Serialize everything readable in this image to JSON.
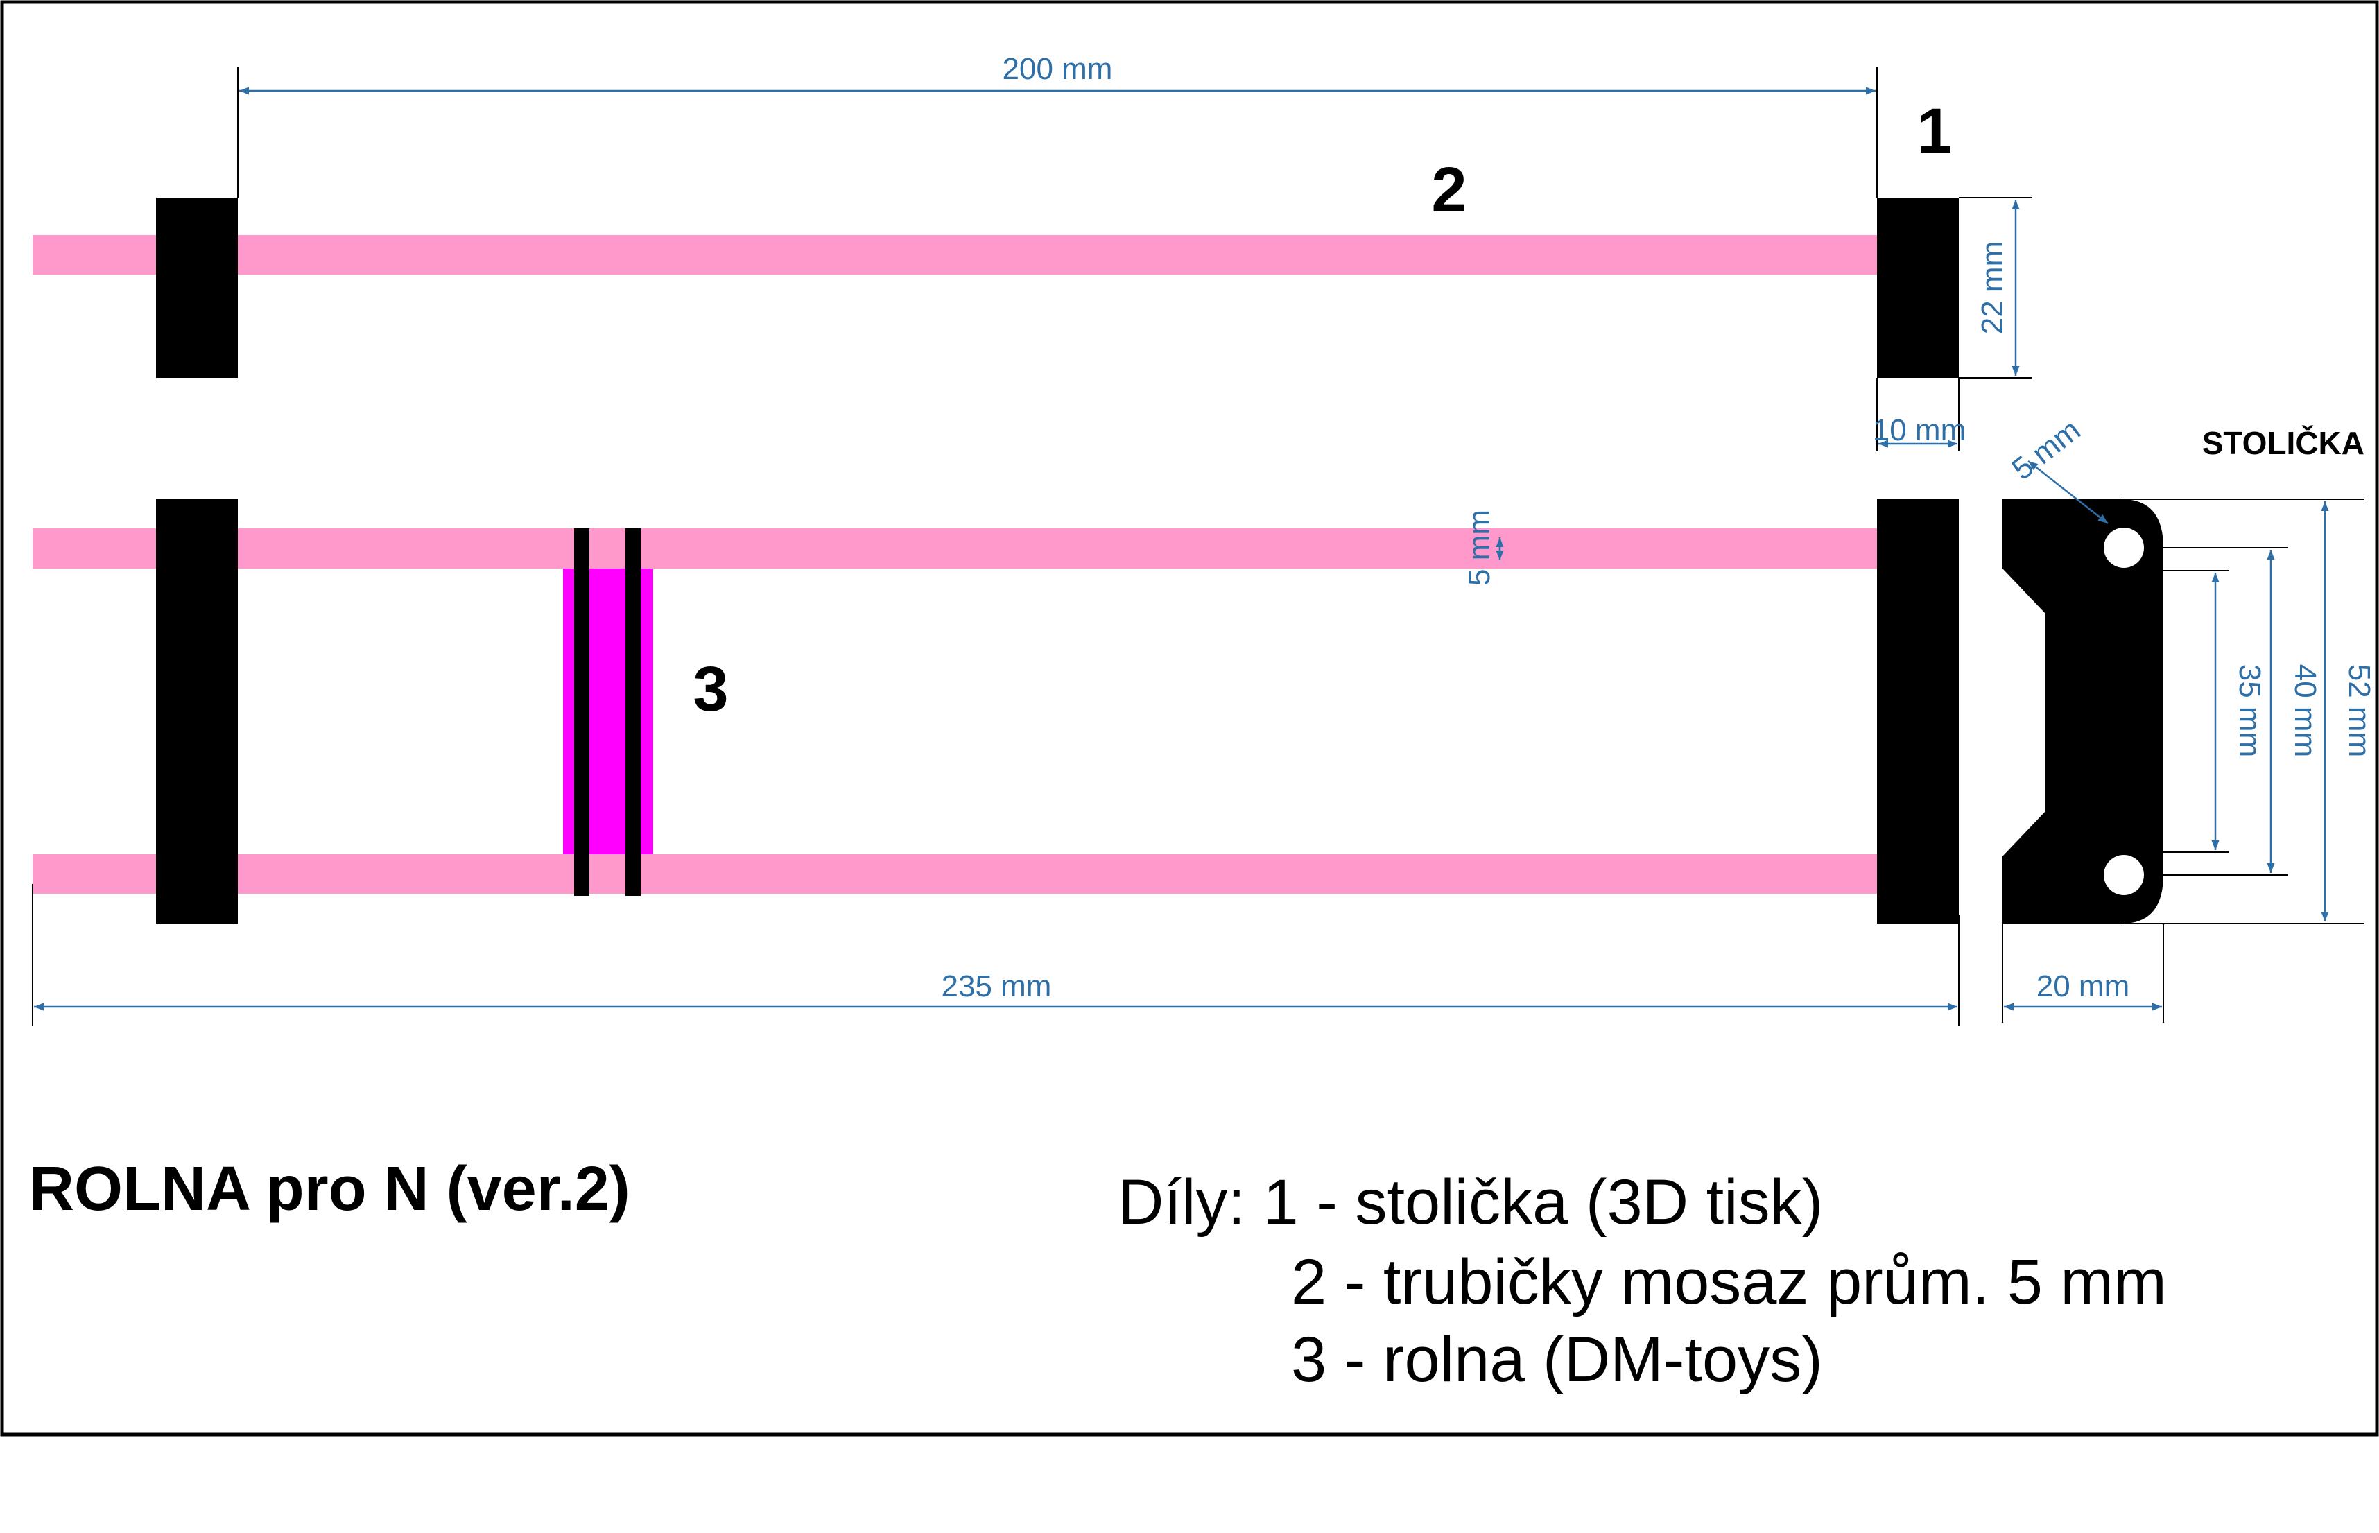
{
  "colors": {
    "tube": "#ff99cc",
    "roller": "#ff00ff",
    "part": "#000000",
    "dimension": "#2e6fa8",
    "frame": "#000000"
  },
  "labels": {
    "part1": "1",
    "part2": "2",
    "part3": "3",
    "stolicka": "STOLIČKA"
  },
  "dimensions": {
    "length_200": "200 mm",
    "length_235": "235 mm",
    "height_22": "22 mm",
    "width_10": "10 mm",
    "tube_5": "5 mm",
    "hole_5": "5 mm",
    "spacing_35": "35 mm",
    "spacing_40": "40 mm",
    "height_52": "52 mm",
    "width_20": "20 mm"
  },
  "title": "ROLNA pro N (ver.2)",
  "parts": {
    "line1": "Díly: 1 - stolička (3D tisk)",
    "line2": "2 - trubičky mosaz prům. 5 mm",
    "line3": "3 - rolna (DM-toys)"
  }
}
